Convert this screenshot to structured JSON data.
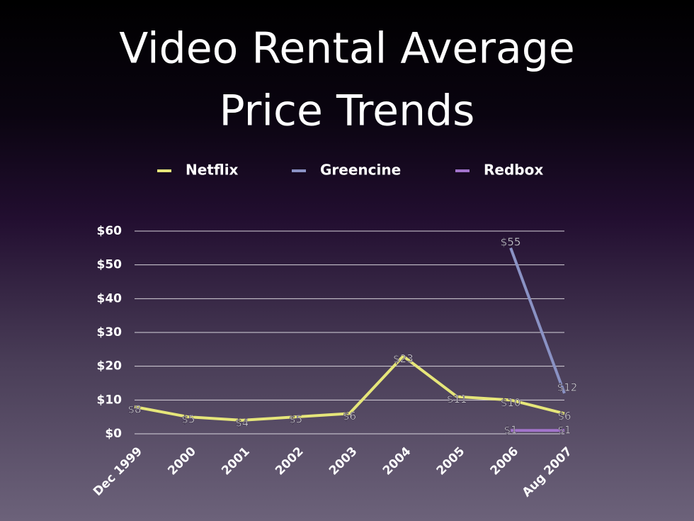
{
  "chart_data": {
    "type": "line",
    "title": [
      "Video Rental Average",
      "Price Trends"
    ],
    "categories": [
      "Dec 1999",
      "2000",
      "2001",
      "2002",
      "2003",
      "2004",
      "2005",
      "2006",
      "Aug 2007"
    ],
    "series": [
      {
        "name": "Netflix",
        "color": "#e6e67a",
        "values": [
          8,
          5,
          4,
          5,
          6,
          23,
          11,
          10,
          6
        ],
        "value_labels": [
          "$8",
          "$5",
          "$4",
          "$5",
          "$6",
          "$23",
          "$11",
          "$10",
          "$6"
        ]
      },
      {
        "name": "Greencine",
        "color": "#8a92c4",
        "values": [
          null,
          null,
          null,
          null,
          null,
          null,
          null,
          55,
          12
        ],
        "value_labels": [
          null,
          null,
          null,
          null,
          null,
          null,
          null,
          "$55",
          "$12"
        ]
      },
      {
        "name": "Redbox",
        "color": "#a274cc",
        "values": [
          null,
          null,
          null,
          null,
          null,
          null,
          null,
          1,
          1
        ],
        "value_labels": [
          null,
          null,
          null,
          null,
          null,
          null,
          null,
          "$1",
          "$1"
        ]
      }
    ],
    "ylim": [
      0,
      60
    ],
    "yticks": [
      {
        "value": 0,
        "label": "$0"
      },
      {
        "value": 10,
        "label": "$10"
      },
      {
        "value": 20,
        "label": "$20"
      },
      {
        "value": 30,
        "label": "$30"
      },
      {
        "value": 40,
        "label": "$40"
      },
      {
        "value": 50,
        "label": "$50"
      },
      {
        "value": 60,
        "label": "$60"
      }
    ],
    "grid": true,
    "legend": "top"
  }
}
